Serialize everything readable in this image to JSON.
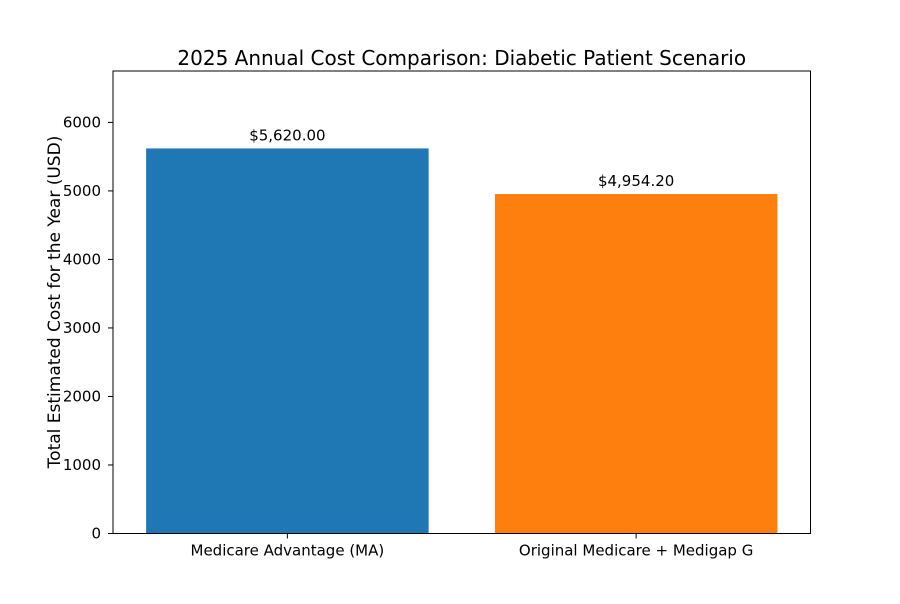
{
  "figure": {
    "background": "#ffffff"
  },
  "chart_data": {
    "type": "bar",
    "title": "2025 Annual Cost Comparison: Diabetic Patient Scenario",
    "xlabel": "",
    "ylabel": "Total Estimated Cost for the Year (USD)",
    "categories": [
      "Medicare Advantage (MA)",
      "Original Medicare + Medigap G"
    ],
    "values": [
      5620.0,
      4954.2
    ],
    "value_labels": [
      "$5,620.00",
      "$4,954.20"
    ],
    "bar_colors": [
      "#1f77b4",
      "#ff7f0e"
    ],
    "ylim": [
      0,
      6750
    ],
    "yticks": [
      0,
      1000,
      2000,
      3000,
      4000,
      5000,
      6000
    ],
    "grid": false,
    "legend": "none",
    "bar_width_fraction": 0.81
  }
}
